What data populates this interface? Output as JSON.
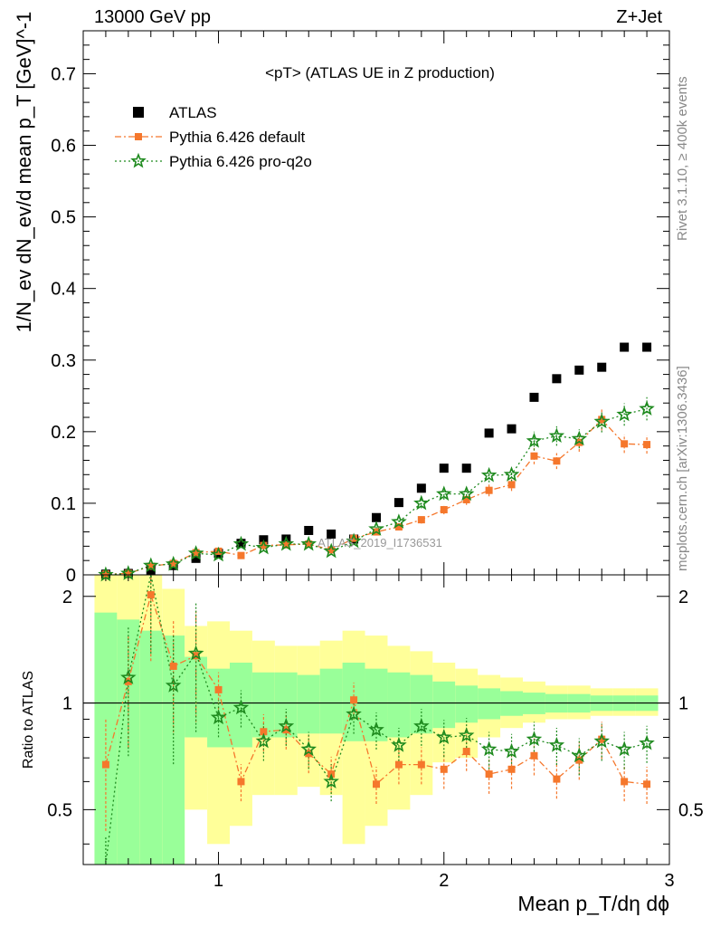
{
  "header": {
    "left": "13000 GeV pp",
    "right": "Z+Jet"
  },
  "side_labels": {
    "rivet": "Rivet 3.1.10, ≥ 400k events",
    "mcplots": "mcplots.cern.ch [arXiv:1306.3436]"
  },
  "chart_data": {
    "type": "scatter",
    "title": "<pT> (ATLAS UE in Z production)",
    "watermark": "ATLAS_2019_I1736531",
    "xlabel": "Mean p_T/dη dϕ",
    "ylabel": "1/N_ev dN_ev/d mean p_T [GeV]^-1",
    "ratio_ylabel": "Ratio to ATLAS",
    "xlim": [
      0.4,
      3.0
    ],
    "ylim": [
      0,
      0.76
    ],
    "ratio_ylim": [
      0.35,
      2.3
    ],
    "log_ratio": true,
    "x_ticks": [
      "1",
      "2",
      "3"
    ],
    "y_ticks": [
      "0",
      "0.1",
      "0.2",
      "0.3",
      "0.4",
      "0.5",
      "0.6",
      "0.7"
    ],
    "ratio_ticks": [
      "0.5",
      "1",
      "2"
    ],
    "x": [
      0.5,
      0.6,
      0.7,
      0.8,
      0.9,
      1.0,
      1.1,
      1.2,
      1.3,
      1.4,
      1.5,
      1.6,
      1.7,
      1.8,
      1.9,
      2.0,
      2.1,
      2.2,
      2.3,
      2.4,
      2.5,
      2.6,
      2.7,
      2.8,
      2.9
    ],
    "legend": [
      {
        "name": "ATLAS",
        "color": "#000000",
        "marker": "square"
      },
      {
        "name": "Pythia 6.426 default",
        "color": "#f5772c",
        "marker": "square-dashdot"
      },
      {
        "name": "Pythia 6.426 pro-q2o",
        "color": "#1e8a1e",
        "marker": "star-dotted"
      }
    ],
    "series": [
      {
        "name": "ATLAS",
        "values": [
          0.001,
          0.002,
          0.007,
          0.013,
          0.023,
          0.03,
          0.044,
          0.049,
          0.05,
          0.062,
          0.057,
          0.05,
          0.08,
          0.101,
          0.121,
          0.149,
          0.149,
          0.198,
          0.204,
          0.248,
          0.274,
          0.286,
          0.29,
          0.318,
          0.318
        ]
      },
      {
        "name": "Pythia 6.426 default",
        "values": [
          0.001,
          0.002,
          0.012,
          0.016,
          0.031,
          0.033,
          0.027,
          0.041,
          0.042,
          0.043,
          0.035,
          0.051,
          0.06,
          0.067,
          0.077,
          0.091,
          0.105,
          0.118,
          0.126,
          0.166,
          0.159,
          0.185,
          0.217,
          0.183,
          0.182
        ]
      },
      {
        "name": "Pythia 6.426 pro-q2o",
        "values": [
          0.0002,
          0.002,
          0.013,
          0.015,
          0.03,
          0.028,
          0.043,
          0.038,
          0.043,
          0.043,
          0.033,
          0.047,
          0.064,
          0.074,
          0.1,
          0.113,
          0.113,
          0.139,
          0.14,
          0.187,
          0.194,
          0.19,
          0.214,
          0.224,
          0.232
        ]
      }
    ],
    "ratio": [
      {
        "name": "Pythia 6.426 default",
        "values": [
          0.67,
          1.15,
          2.02,
          1.27,
          1.36,
          1.09,
          0.6,
          0.83,
          0.84,
          0.72,
          0.63,
          1.02,
          0.59,
          0.67,
          0.67,
          0.65,
          0.73,
          0.63,
          0.65,
          0.71,
          0.61,
          0.69,
          0.79,
          0.6,
          0.59
        ]
      },
      {
        "name": "Pythia 6.426 pro-q2o",
        "values": [
          0.3,
          1.18,
          2.3,
          1.12,
          1.38,
          0.91,
          0.97,
          0.78,
          0.86,
          0.74,
          0.6,
          0.93,
          0.84,
          0.76,
          0.86,
          0.8,
          0.81,
          0.74,
          0.73,
          0.79,
          0.76,
          0.71,
          0.78,
          0.74,
          0.77
        ]
      }
    ],
    "uncertainty_bands": {
      "bin_edges": [
        0.45,
        0.55,
        0.65,
        0.75,
        0.85,
        0.95,
        1.05,
        1.15,
        1.25,
        1.35,
        1.45,
        1.55,
        1.65,
        1.75,
        1.85,
        1.95,
        2.05,
        2.15,
        2.25,
        2.35,
        2.45,
        2.55,
        2.65,
        2.75,
        2.85,
        2.95
      ],
      "inner": [
        [
          0.35,
          1.8
        ],
        [
          0.35,
          1.72
        ],
        [
          0.35,
          1.6
        ],
        [
          0.35,
          1.55
        ],
        [
          0.8,
          1.35
        ],
        [
          0.75,
          1.25
        ],
        [
          0.75,
          1.3
        ],
        [
          0.8,
          1.22
        ],
        [
          0.8,
          1.22
        ],
        [
          0.82,
          1.2
        ],
        [
          0.82,
          1.25
        ],
        [
          0.78,
          1.3
        ],
        [
          0.78,
          1.25
        ],
        [
          0.8,
          1.22
        ],
        [
          0.82,
          1.2
        ],
        [
          0.85,
          1.15
        ],
        [
          0.88,
          1.12
        ],
        [
          0.9,
          1.1
        ],
        [
          0.92,
          1.08
        ],
        [
          0.93,
          1.07
        ],
        [
          0.94,
          1.06
        ],
        [
          0.94,
          1.06
        ],
        [
          0.95,
          1.05
        ],
        [
          0.95,
          1.05
        ],
        [
          0.95,
          1.05
        ]
      ],
      "outer": [
        [
          0.35,
          2.3
        ],
        [
          0.35,
          2.3
        ],
        [
          0.35,
          2.3
        ],
        [
          0.35,
          2.1
        ],
        [
          0.5,
          1.65
        ],
        [
          0.4,
          1.7
        ],
        [
          0.45,
          1.6
        ],
        [
          0.55,
          1.5
        ],
        [
          0.55,
          1.45
        ],
        [
          0.58,
          1.45
        ],
        [
          0.55,
          1.5
        ],
        [
          0.4,
          1.6
        ],
        [
          0.45,
          1.55
        ],
        [
          0.5,
          1.45
        ],
        [
          0.55,
          1.4
        ],
        [
          0.68,
          1.3
        ],
        [
          0.7,
          1.25
        ],
        [
          0.8,
          1.2
        ],
        [
          0.85,
          1.18
        ],
        [
          0.88,
          1.15
        ],
        [
          0.9,
          1.12
        ],
        [
          0.9,
          1.12
        ],
        [
          0.92,
          1.1
        ],
        [
          0.92,
          1.1
        ],
        [
          0.92,
          1.1
        ]
      ]
    },
    "colors": {
      "band_outer": "#ffff99",
      "band_inner": "#99ff99",
      "default": "#f5772c",
      "proq2o": "#1e8a1e",
      "data": "#000000"
    }
  }
}
